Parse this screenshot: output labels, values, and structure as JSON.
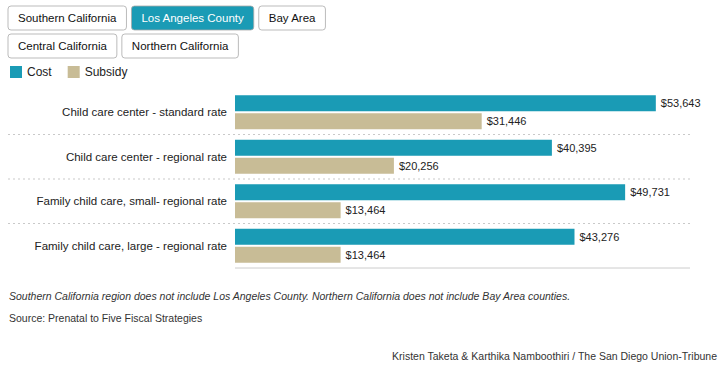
{
  "chart_data": {
    "type": "bar",
    "orientation": "horizontal",
    "categories": [
      "Child care center - standard rate",
      "Child care center - regional rate",
      "Family child care, small- regional rate",
      "Family child care, large - regional rate"
    ],
    "series": [
      {
        "name": "Cost",
        "color": "#1a9bb5",
        "values": [
          53643,
          40395,
          49731,
          43276
        ],
        "value_labels": [
          "$53,643",
          "$40,395",
          "$49,731",
          "$43,276"
        ]
      },
      {
        "name": "Subsidy",
        "color": "#c8bc96",
        "values": [
          31446,
          20256,
          13464,
          13464
        ],
        "value_labels": [
          "$31,446",
          "$20,256",
          "$13,464",
          "$13,464"
        ]
      }
    ],
    "xlim": [
      0,
      58000
    ],
    "data_labels": true,
    "tick_labels": "y",
    "grid": false,
    "legend": "upper left",
    "annotations": [
      "Southern California",
      "Los Angeles County",
      "Bay Area",
      "Central California",
      "Northern California",
      "Southern California region does not include Los Angeles County. Northern California does not include Bay Area counties.",
      "Source: Prenatal to Five Fiscal Strategies",
      "Kristen Taketa & Karthika Namboothiri / The San Diego Union-Tribune"
    ]
  }
}
